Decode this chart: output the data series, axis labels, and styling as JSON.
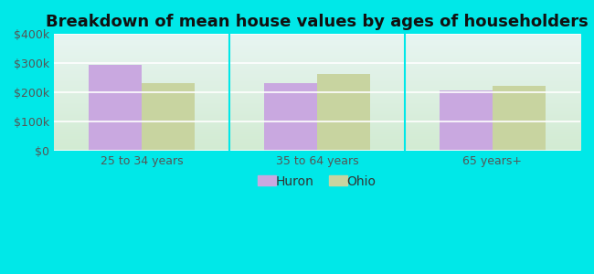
{
  "title": "Breakdown of mean house values by ages of householders",
  "categories": [
    "25 to 34 years",
    "35 to 64 years",
    "65 years+"
  ],
  "huron_values": [
    295000,
    232000,
    207000
  ],
  "ohio_values": [
    232000,
    262000,
    222000
  ],
  "huron_color": "#c9a8e0",
  "ohio_color": "#c8d4a0",
  "ylim": [
    0,
    400000
  ],
  "yticks": [
    0,
    100000,
    200000,
    300000,
    400000
  ],
  "ytick_labels": [
    "$0",
    "$100k",
    "$200k",
    "$300k",
    "$400k"
  ],
  "legend_labels": [
    "Huron",
    "Ohio"
  ],
  "background_outer": "#00e8e8",
  "background_top": "#e8f5f5",
  "background_bottom": "#d8eed8",
  "grid_color": "#ffffff",
  "divider_color": "#00e8e8",
  "bar_width": 0.3,
  "title_fontsize": 13,
  "tick_fontsize": 9,
  "legend_fontsize": 10
}
